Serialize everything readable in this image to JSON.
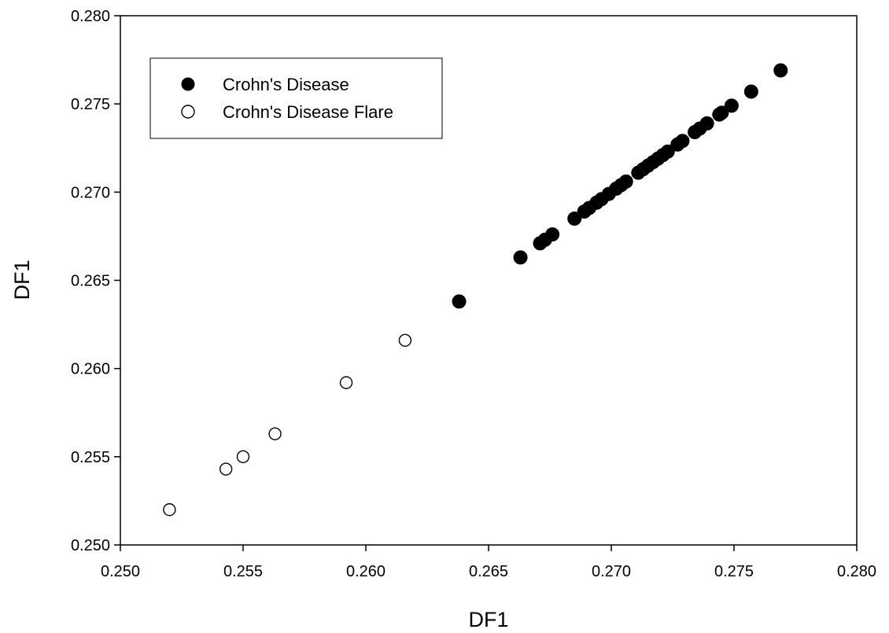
{
  "chart_data": {
    "type": "scatter",
    "xlabel": "DF1",
    "ylabel": "DF1",
    "xlim": [
      0.25,
      0.28
    ],
    "ylim": [
      0.25,
      0.28
    ],
    "xticks": [
      "0.250",
      "0.255",
      "0.260",
      "0.265",
      "0.270",
      "0.275",
      "0.280"
    ],
    "yticks": [
      "0.250",
      "0.255",
      "0.260",
      "0.265",
      "0.270",
      "0.275",
      "0.280"
    ],
    "grid": false,
    "legend_position": "top-left",
    "series": [
      {
        "name": "Crohn's Disease",
        "marker": "filled-circle",
        "color": "#000000",
        "points": [
          [
            0.2638,
            0.2638
          ],
          [
            0.2663,
            0.2663
          ],
          [
            0.2671,
            0.2671
          ],
          [
            0.2673,
            0.2673
          ],
          [
            0.2676,
            0.2676
          ],
          [
            0.2685,
            0.2685
          ],
          [
            0.2689,
            0.2689
          ],
          [
            0.2691,
            0.2691
          ],
          [
            0.2694,
            0.2694
          ],
          [
            0.2696,
            0.2696
          ],
          [
            0.2699,
            0.2699
          ],
          [
            0.2702,
            0.2702
          ],
          [
            0.2704,
            0.2704
          ],
          [
            0.2706,
            0.2706
          ],
          [
            0.2711,
            0.2711
          ],
          [
            0.2713,
            0.2713
          ],
          [
            0.2715,
            0.2715
          ],
          [
            0.2717,
            0.2717
          ],
          [
            0.2719,
            0.2719
          ],
          [
            0.2721,
            0.2721
          ],
          [
            0.2723,
            0.2723
          ],
          [
            0.2727,
            0.2727
          ],
          [
            0.2729,
            0.2729
          ],
          [
            0.2734,
            0.2734
          ],
          [
            0.2736,
            0.2736
          ],
          [
            0.2739,
            0.2739
          ],
          [
            0.2744,
            0.2744
          ],
          [
            0.2745,
            0.2745
          ],
          [
            0.2749,
            0.2749
          ],
          [
            0.2757,
            0.2757
          ],
          [
            0.2769,
            0.2769
          ]
        ]
      },
      {
        "name": "Crohn's Disease Flare",
        "marker": "open-circle",
        "color": "#000000",
        "points": [
          [
            0.252,
            0.252
          ],
          [
            0.2543,
            0.2543
          ],
          [
            0.255,
            0.255
          ],
          [
            0.2563,
            0.2563
          ],
          [
            0.2592,
            0.2592
          ],
          [
            0.2616,
            0.2616
          ]
        ]
      }
    ]
  }
}
